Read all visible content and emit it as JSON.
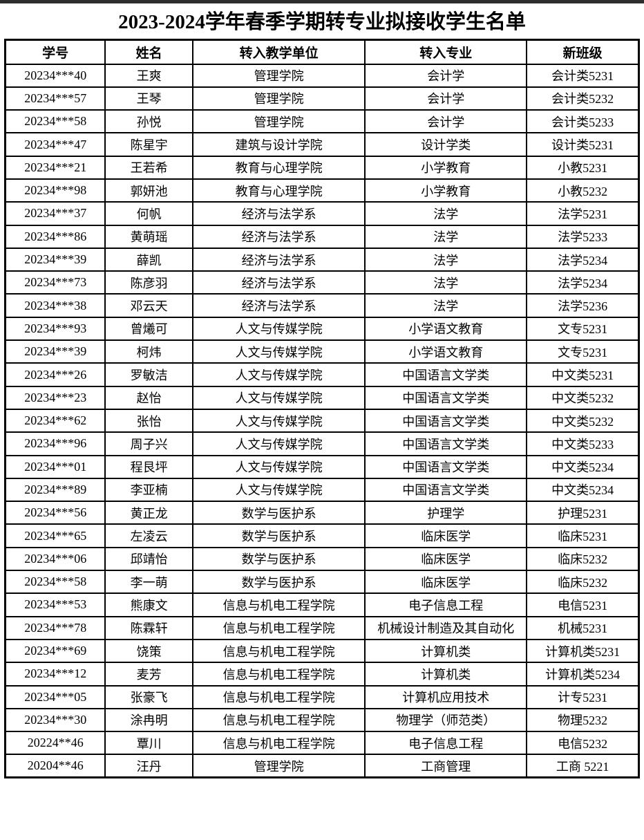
{
  "page": {
    "title": "2023-2024学年春季学期转专业拟接收学生名单"
  },
  "table": {
    "columns": [
      "学号",
      "姓名",
      "转入教学单位",
      "转入专业",
      "新班级"
    ],
    "rows": [
      [
        "20234***40",
        "王爽",
        "管理学院",
        "会计学",
        "会计类5231"
      ],
      [
        "20234***57",
        "王琴",
        "管理学院",
        "会计学",
        "会计类5232"
      ],
      [
        "20234***58",
        "孙悦",
        "管理学院",
        "会计学",
        "会计类5233"
      ],
      [
        "20234***47",
        "陈星宇",
        "建筑与设计学院",
        "设计学类",
        "设计类5231"
      ],
      [
        "20234***21",
        "王若希",
        "教育与心理学院",
        "小学教育",
        "小教5231"
      ],
      [
        "20234***98",
        "郭妍池",
        "教育与心理学院",
        "小学教育",
        "小教5232"
      ],
      [
        "20234***37",
        "何帆",
        "经济与法学系",
        "法学",
        "法学5231"
      ],
      [
        "20234***86",
        "黄萌瑶",
        "经济与法学系",
        "法学",
        "法学5233"
      ],
      [
        "20234***39",
        "薛凯",
        "经济与法学系",
        "法学",
        "法学5234"
      ],
      [
        "20234***73",
        "陈彦羽",
        "经济与法学系",
        "法学",
        "法学5234"
      ],
      [
        "20234***38",
        "邓云天",
        "经济与法学系",
        "法学",
        "法学5236"
      ],
      [
        "20234***93",
        "曾爔可",
        "人文与传媒学院",
        "小学语文教育",
        "文专5231"
      ],
      [
        "20234***39",
        "柯炜",
        "人文与传媒学院",
        "小学语文教育",
        "文专5231"
      ],
      [
        "20234***26",
        "罗敏洁",
        "人文与传媒学院",
        "中国语言文学类",
        "中文类5231"
      ],
      [
        "20234***23",
        "赵怡",
        "人文与传媒学院",
        "中国语言文学类",
        "中文类5232"
      ],
      [
        "20234***62",
        "张怡",
        "人文与传媒学院",
        "中国语言文学类",
        "中文类5232"
      ],
      [
        "20234***96",
        "周子兴",
        "人文与传媒学院",
        "中国语言文学类",
        "中文类5233"
      ],
      [
        "20234***01",
        "程艮坪",
        "人文与传媒学院",
        "中国语言文学类",
        "中文类5234"
      ],
      [
        "20234***89",
        "李亚楠",
        "人文与传媒学院",
        "中国语言文学类",
        "中文类5234"
      ],
      [
        "20234***56",
        "黄正龙",
        "数学与医护系",
        "护理学",
        "护理5231"
      ],
      [
        "20234***65",
        "左凌云",
        "数学与医护系",
        "临床医学",
        "临床5231"
      ],
      [
        "20234***06",
        "邱靖怡",
        "数学与医护系",
        "临床医学",
        "临床5232"
      ],
      [
        "20234***58",
        "李一萌",
        "数学与医护系",
        "临床医学",
        "临床5232"
      ],
      [
        "20234***53",
        "熊康文",
        "信息与机电工程学院",
        "电子信息工程",
        "电信5231"
      ],
      [
        "20234***78",
        "陈霖轩",
        "信息与机电工程学院",
        "机械设计制造及其自动化",
        "机械5231"
      ],
      [
        "20234***69",
        "饶策",
        "信息与机电工程学院",
        "计算机类",
        "计算机类5231"
      ],
      [
        "20234***12",
        "麦芳",
        "信息与机电工程学院",
        "计算机类",
        "计算机类5234"
      ],
      [
        "20234***05",
        "张豪飞",
        "信息与机电工程学院",
        "计算机应用技术",
        "计专5231"
      ],
      [
        "20234***30",
        "涂冉明",
        "信息与机电工程学院",
        "物理学（师范类）",
        "物理5232"
      ],
      [
        "20224**46",
        "覃川",
        "信息与机电工程学院",
        "电子信息工程",
        "电信5232"
      ],
      [
        "20204**46",
        "汪丹",
        "管理学院",
        "工商管理",
        "工商 5221"
      ]
    ]
  }
}
